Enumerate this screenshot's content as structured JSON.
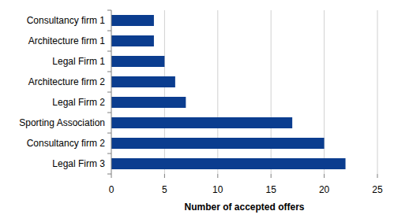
{
  "chart_data": {
    "type": "bar",
    "orientation": "horizontal",
    "categories": [
      "Consultancy firm 1",
      "Architecture firm 1",
      "Legal Firm 1",
      "Architecture firm 2",
      "Legal Firm 2",
      "Sporting Association",
      "Consultancy firm 2",
      "Legal Firm 3"
    ],
    "values": [
      4,
      4,
      5,
      6,
      7,
      17,
      20,
      22
    ],
    "color": "#0b3d8f",
    "x_label": "Number of accepted offers",
    "xlim": [
      0,
      25
    ],
    "xticks": [
      0,
      5,
      10,
      15,
      20,
      25
    ],
    "grid": true
  }
}
